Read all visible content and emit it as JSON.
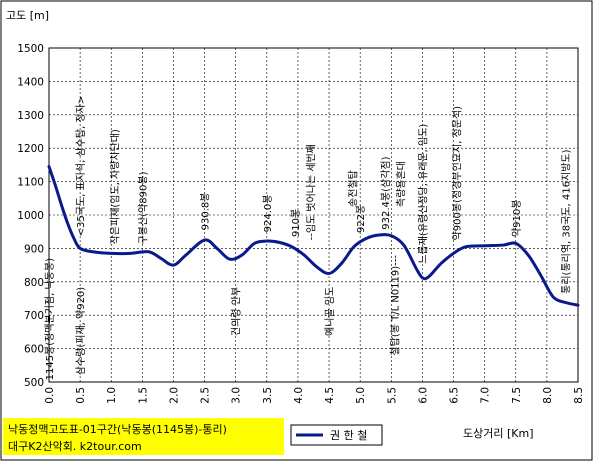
{
  "chart_data": {
    "type": "line",
    "ylabel": "고도 [m]",
    "xlabel": "도상거리 [Km]",
    "xlim": [
      0,
      8.5
    ],
    "ylim": [
      500,
      1500
    ],
    "xticks": [
      "0.0",
      "0.5",
      "1.0",
      "1.5",
      "2.0",
      "2.5",
      "3.0",
      "3.5",
      "4.0",
      "4.5",
      "5.0",
      "5.5",
      "6.0",
      "6.5",
      "7.0",
      "7.5",
      "8.0",
      "8.5"
    ],
    "yticks": [
      "500",
      "600",
      "700",
      "800",
      "900",
      "1000",
      "1100",
      "1200",
      "1300",
      "1400",
      "1500"
    ],
    "grid": true,
    "legend": "bottom-center",
    "series": [
      {
        "name": "권 한 철",
        "color": "#0a1a8c",
        "x": [
          0.0,
          0.1,
          0.2,
          0.3,
          0.4,
          0.5,
          0.7,
          1.0,
          1.3,
          1.6,
          1.8,
          2.0,
          2.2,
          2.5,
          2.7,
          2.9,
          3.1,
          3.3,
          3.5,
          3.7,
          3.9,
          4.1,
          4.3,
          4.5,
          4.7,
          4.9,
          5.1,
          5.3,
          5.5,
          5.7,
          5.9,
          6.0,
          6.1,
          6.3,
          6.5,
          6.7,
          7.0,
          7.3,
          7.5,
          7.7,
          7.9,
          8.1,
          8.3,
          8.5
        ],
        "y": [
          1145,
          1090,
          1030,
          975,
          930,
          900,
          890,
          885,
          885,
          890,
          870,
          850,
          880,
          925,
          900,
          868,
          880,
          915,
          922,
          918,
          905,
          880,
          845,
          825,
          855,
          905,
          930,
          940,
          938,
          910,
          840,
          812,
          815,
          855,
          885,
          905,
          908,
          910,
          915,
          880,
          820,
          755,
          738,
          730
        ]
      }
    ],
    "annotations": [
      {
        "x": 0.0,
        "text": "1145봉(정맥분기점, 낙동봉)",
        "position": "below"
      },
      {
        "x": 0.5,
        "text": "<35국도, 표지석, 삼수탑, 정자>",
        "position": "above"
      },
      {
        "x": 0.5,
        "text": "삼수령(피재, 약920)",
        "position": "below"
      },
      {
        "x": 1.05,
        "text": "작은피재(임도, 차량차단대)",
        "position": "above"
      },
      {
        "x": 1.5,
        "text": "구봉산(약890봉)",
        "position": "above"
      },
      {
        "x": 2.5,
        "text": "930.8봉",
        "position": "above"
      },
      {
        "x": 3.0,
        "text": "건의령 안부",
        "position": "below"
      },
      {
        "x": 3.5,
        "text": "924.0봉",
        "position": "above"
      },
      {
        "x": 3.95,
        "text": "910봉",
        "position": "above"
      },
      {
        "x": 4.2,
        "text": "--임도 벗어나는 세번째",
        "position": "above"
      },
      {
        "x": 4.5,
        "text": "예니골 임도",
        "position": "below"
      },
      {
        "x": 4.88,
        "text": "송전철탑",
        "position": "above"
      },
      {
        "x": 5.0,
        "text": "922봉",
        "position": "above"
      },
      {
        "x": 5.4,
        "text": "932.4봉(삼각점)",
        "position": "above"
      },
      {
        "x": 5.65,
        "text": "측량용흔대",
        "position": "above"
      },
      {
        "x": 5.55,
        "text": "철탑(봉 T/L N0119)---",
        "position": "below"
      },
      {
        "x": 6.0,
        "text": "느릅재(유령산정당, 유래문, 임도)",
        "position": "above"
      },
      {
        "x": 6.55,
        "text": "약900봉(정경부인묘지, 정문석)",
        "position": "above"
      },
      {
        "x": 7.5,
        "text": "약910봉",
        "position": "above"
      },
      {
        "x": 8.3,
        "text": "통리(통리역, 38국도, 416지방도)",
        "position": "above"
      }
    ]
  },
  "footer": {
    "title_line1": "낙동정맥고도표-01구간(낙동봉(1145봉)-통리)",
    "title_line2": "대구K2산악회. k2tour.com",
    "title_bg": "#ffff00"
  }
}
